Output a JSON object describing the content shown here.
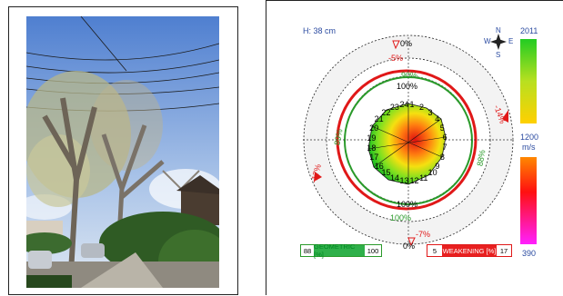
{
  "height_label": "H: 38 cm",
  "compass": {
    "n": "N",
    "s": "S",
    "e": "E",
    "w": "W"
  },
  "ring_labels": {
    "top_percent": "0%",
    "top_red": "-5%",
    "top_green": "90%",
    "top_100": "100%",
    "left_green": "89%",
    "left_red": "-17%",
    "right_red": "-14%",
    "right_green": "88%",
    "bottom_100": "100%",
    "bottom_green": "100%",
    "bottom_red": "-7%",
    "bottom_percent": "0%"
  },
  "sensor_numbers": [
    "1",
    "2",
    "3",
    "4",
    "5",
    "6",
    "7",
    "8",
    "9",
    "10",
    "11",
    "12",
    "13",
    "14",
    "15",
    "16",
    "17",
    "18",
    "19",
    "20",
    "21",
    "22",
    "23",
    "24"
  ],
  "scale": {
    "top": "2011",
    "mid": "1200",
    "unit": "m/s",
    "bottom": "390"
  },
  "geometric_box": {
    "left": "88",
    "label": "GEOMETRIC [%]",
    "right": "100"
  },
  "weakening_box": {
    "left": "5",
    "label": "WEAKENING [%]",
    "right": "17"
  },
  "colors": {
    "green": "#2ea043",
    "red": "#e02020",
    "accent_green": "#33cc33"
  }
}
